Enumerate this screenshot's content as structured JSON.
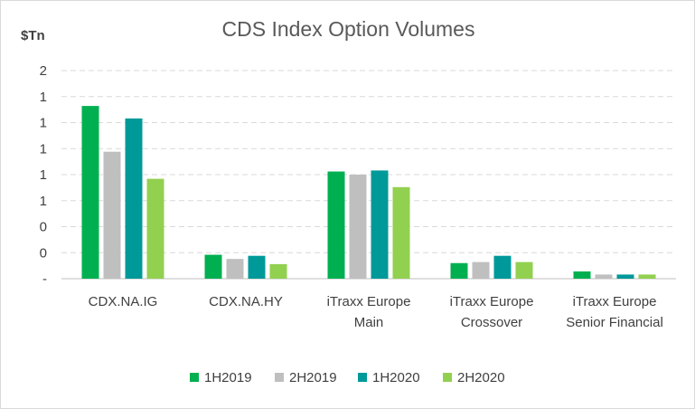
{
  "chart_data": {
    "type": "bar",
    "title": "CDS Index Option Volumes",
    "ylabel": "$Tn",
    "ylim": [
      0,
      2
    ],
    "yticks": [
      "-",
      "0",
      "0",
      "1",
      "1",
      "1",
      "1",
      "1",
      "2"
    ],
    "categories": [
      [
        "CDX.NA.IG"
      ],
      [
        "CDX.NA.HY"
      ],
      [
        "iTraxx Europe",
        "Main"
      ],
      [
        "iTraxx Europe",
        "Crossover"
      ],
      [
        "iTraxx Europe",
        "Senior Financial"
      ]
    ],
    "series": [
      {
        "name": "1H2019",
        "color": "#00b050",
        "values": [
          1.66,
          0.23,
          1.03,
          0.15,
          0.07
        ]
      },
      {
        "name": "2H2019",
        "color": "#bfbfbf",
        "values": [
          1.22,
          0.19,
          1.0,
          0.16,
          0.04
        ]
      },
      {
        "name": "1H2020",
        "color": "#009999",
        "values": [
          1.54,
          0.22,
          1.04,
          0.22,
          0.04
        ]
      },
      {
        "name": "2H2020",
        "color": "#92d050",
        "values": [
          0.96,
          0.14,
          0.88,
          0.16,
          0.04
        ]
      }
    ],
    "legend": "bottom",
    "grid": true
  }
}
